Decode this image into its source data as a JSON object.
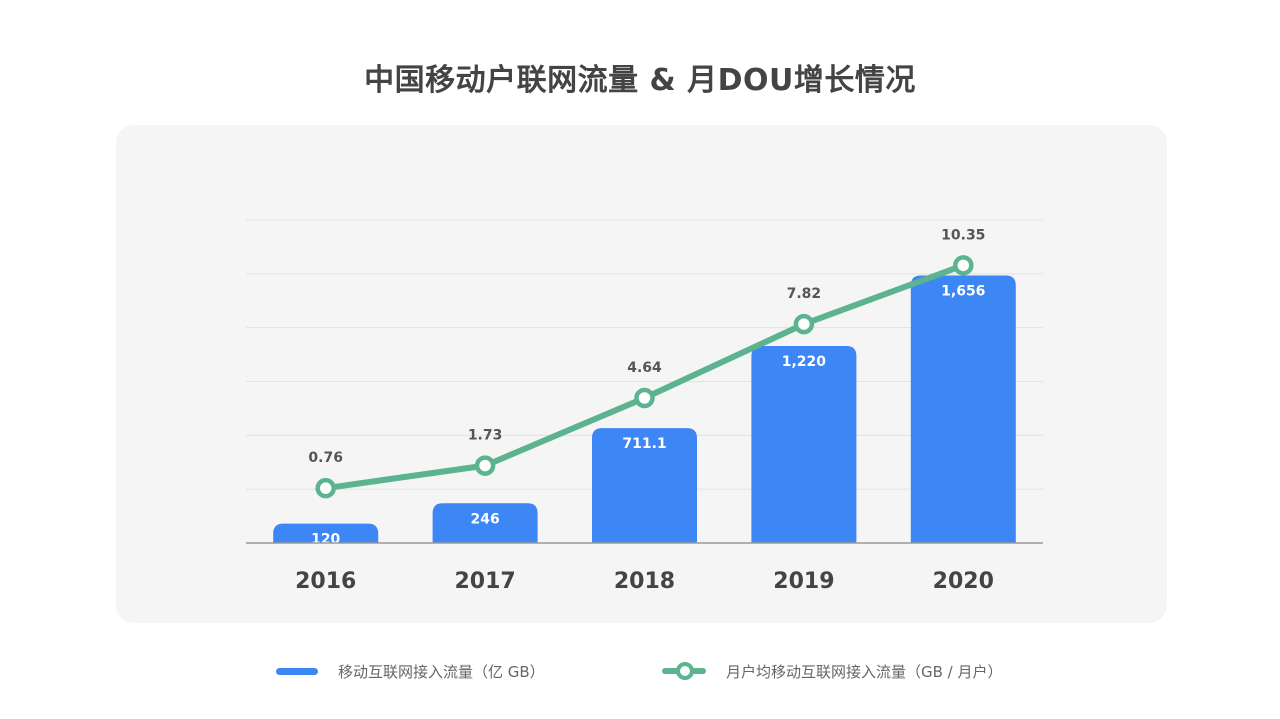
{
  "title": "中国移动户联网流量 & 月DOU增长情况",
  "colors": {
    "bar": "#3d86f5",
    "line": "#5bb38f",
    "grid": "#e2e2e2",
    "axis": "#9a9a9a"
  },
  "legend": {
    "bar_label": "移动互联网接入流量（亿 GB）",
    "line_label": "月户均移动互联网接入流量（GB / 月户）"
  },
  "chart_data": {
    "type": "bar",
    "title": "中国移动户联网流量 & 月DOU增长情况",
    "categories": [
      "2016",
      "2017",
      "2018",
      "2019",
      "2020"
    ],
    "series": [
      {
        "name": "移动互联网接入流量（亿 GB）",
        "type": "bar",
        "values": [
          120,
          246,
          711.1,
          1220,
          1656
        ],
        "labels": [
          "120",
          "246",
          "711.1",
          "1,220",
          "1,656"
        ],
        "ylim": [
          0,
          2000
        ]
      },
      {
        "name": "月户均移动互联网接入流量（GB / 月户）",
        "type": "line",
        "values": [
          0.76,
          1.73,
          4.64,
          7.82,
          10.35
        ],
        "labels": [
          "0.76",
          "1.73",
          "4.64",
          "7.82",
          "10.35"
        ],
        "ylim": [
          -1.6,
          12.3
        ]
      }
    ],
    "grid": true,
    "legend_position": "bottom"
  }
}
